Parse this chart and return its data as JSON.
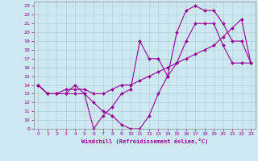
{
  "xlabel": "Windchill (Refroidissement éolien,°C)",
  "xlim": [
    -0.5,
    23.5
  ],
  "ylim": [
    9,
    23.5
  ],
  "xticks": [
    0,
    1,
    2,
    3,
    4,
    5,
    6,
    7,
    8,
    9,
    10,
    11,
    12,
    13,
    14,
    15,
    16,
    17,
    18,
    19,
    20,
    21,
    22,
    23
  ],
  "yticks": [
    9,
    10,
    11,
    12,
    13,
    14,
    15,
    16,
    17,
    18,
    19,
    20,
    21,
    22,
    23
  ],
  "bg_color": "#cde8f0",
  "line_color": "#990099",
  "line1_x": [
    0,
    1,
    2,
    3,
    4,
    5,
    6,
    7,
    8,
    9,
    10,
    11,
    12,
    13,
    14,
    15,
    16,
    17,
    18,
    19,
    20,
    21,
    22,
    23
  ],
  "line1_y": [
    14,
    13,
    13,
    13,
    13,
    13,
    12,
    11,
    10.5,
    9.5,
    9,
    9,
    10.5,
    13,
    15,
    16.5,
    19,
    21,
    21,
    21,
    18.5,
    16.5,
    16.5,
    16.5
  ],
  "line2_x": [
    0,
    1,
    2,
    3,
    4,
    5,
    6,
    7,
    8,
    9,
    10,
    11,
    12,
    13,
    14,
    15,
    16,
    17,
    18,
    19,
    20,
    21,
    22,
    23
  ],
  "line2_y": [
    14,
    13,
    13,
    13.5,
    13.5,
    13.5,
    13,
    13,
    13.5,
    14,
    14,
    14.5,
    15,
    15.5,
    16,
    16.5,
    17,
    17.5,
    18,
    18.5,
    19.5,
    20.5,
    21.5,
    16.5
  ],
  "line3_x": [
    0,
    1,
    2,
    3,
    4,
    5,
    6,
    7,
    8,
    9,
    10,
    11,
    12,
    13,
    14,
    15,
    16,
    17,
    18,
    19,
    20,
    21,
    22,
    23
  ],
  "line3_y": [
    14,
    13,
    13,
    13,
    14,
    13,
    9,
    10.5,
    11.5,
    13,
    13.5,
    19,
    17,
    17,
    15,
    20,
    22.5,
    23,
    22.5,
    22.5,
    21,
    19,
    19,
    16.5
  ]
}
